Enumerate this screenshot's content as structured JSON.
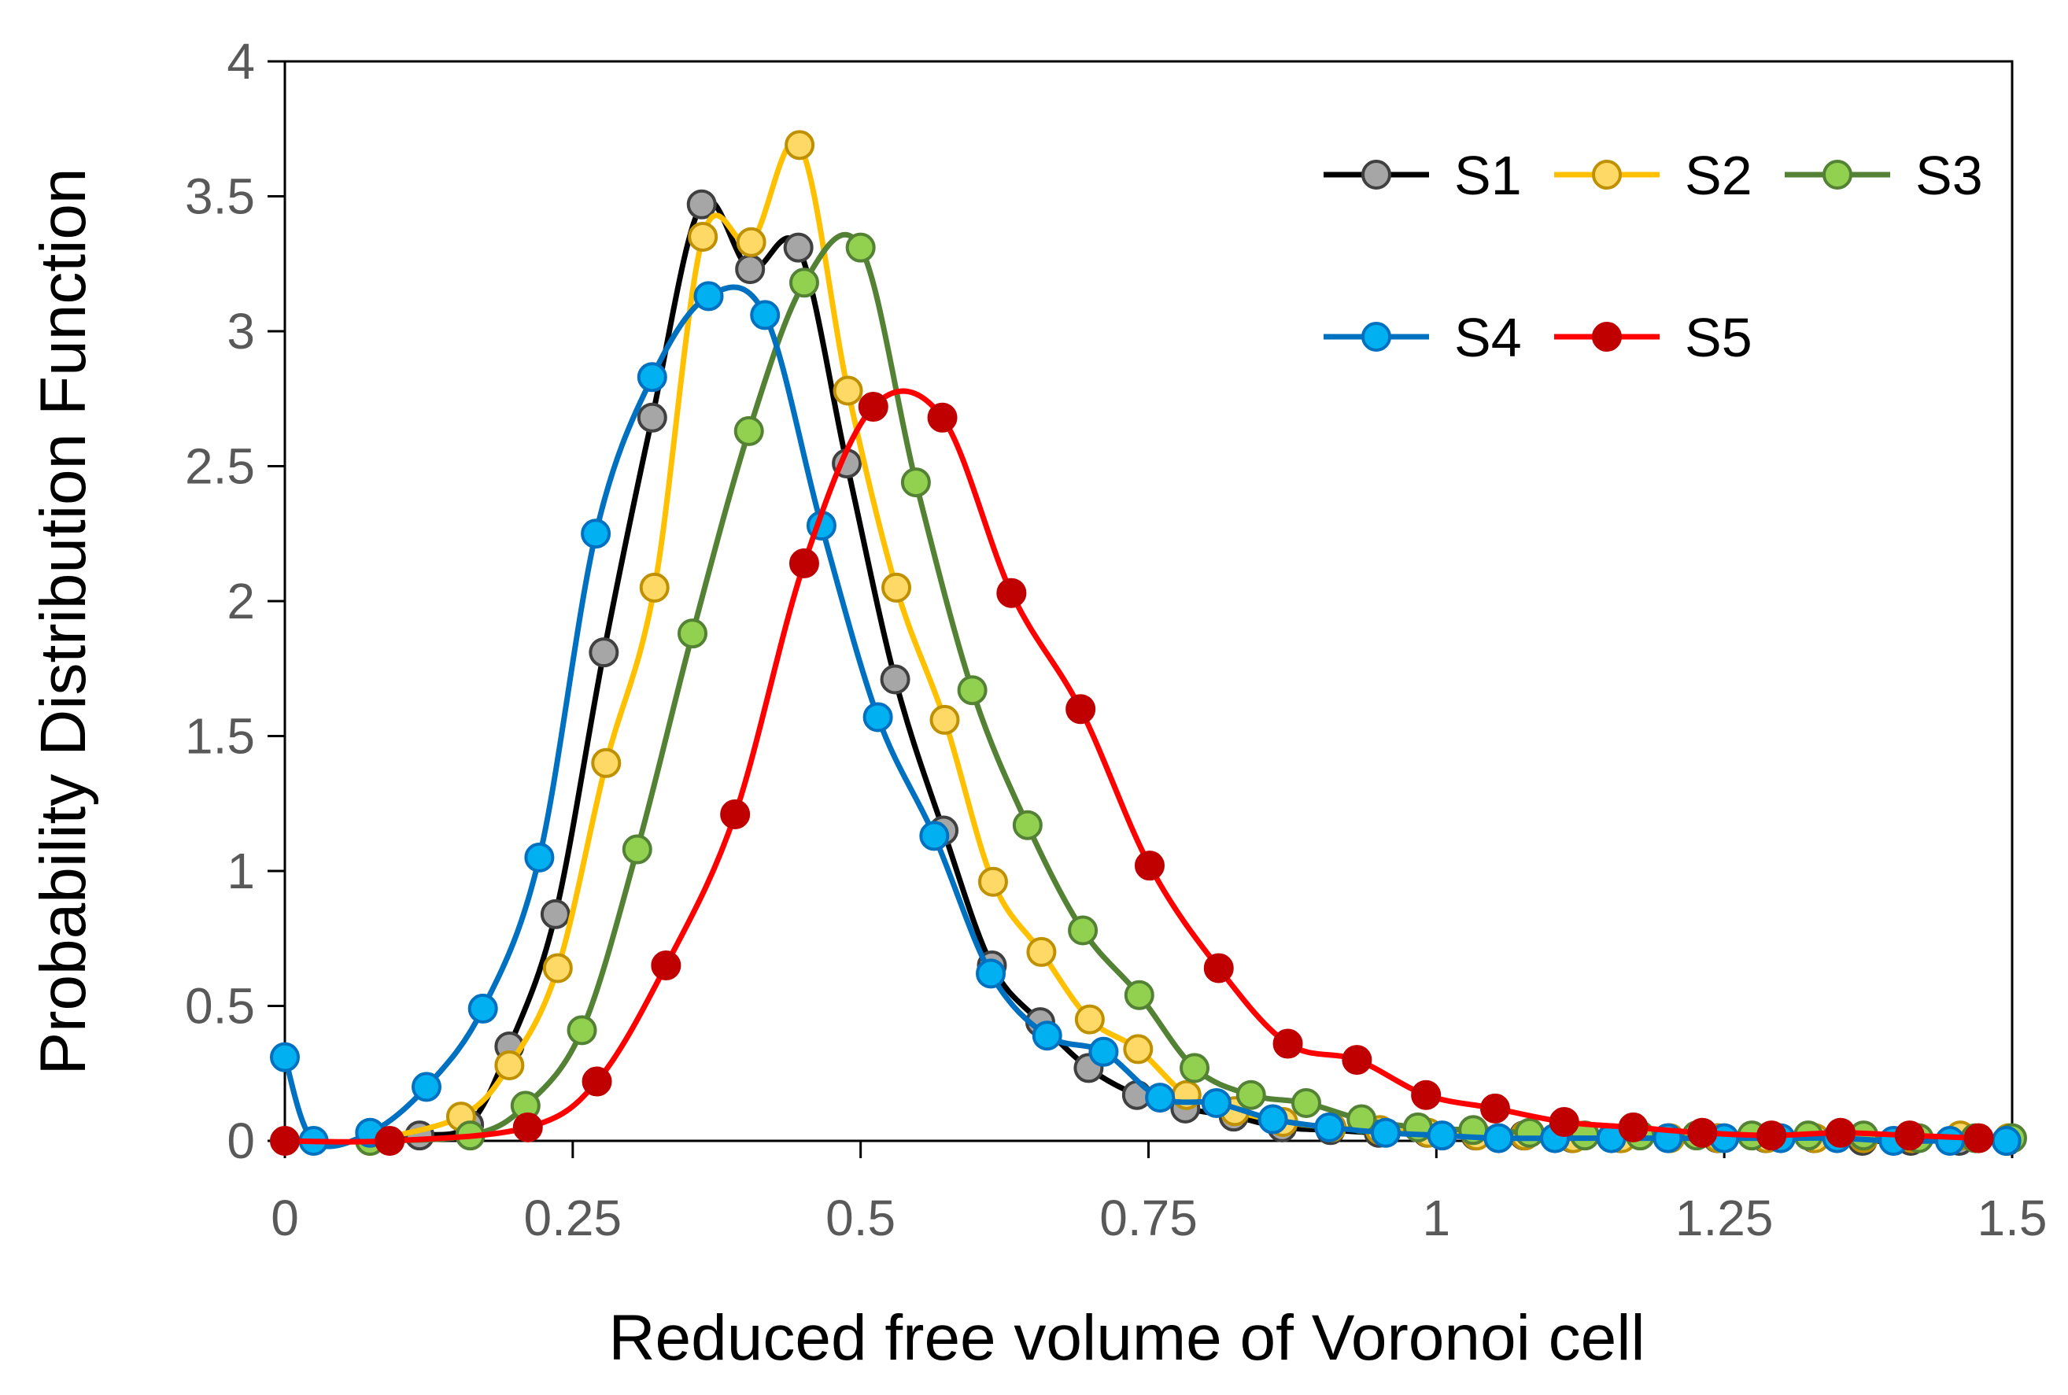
{
  "chart_data": {
    "type": "line",
    "title": "",
    "xlabel": "Reduced free volume of Voronoi cell",
    "ylabel": "Probability Distribution Function",
    "xlim": [
      0,
      1.5
    ],
    "ylim": [
      0,
      4
    ],
    "xticks": [
      0,
      0.25,
      0.5,
      0.75,
      1,
      1.25,
      1.5
    ],
    "yticks": [
      0,
      0.5,
      1,
      1.5,
      2,
      2.5,
      3,
      3.5,
      4
    ],
    "xtick_labels": [
      "0",
      "0.25",
      "0.5",
      "0.75",
      "1",
      "1.25",
      "1.5"
    ],
    "ytick_labels": [
      "0",
      "0.5",
      "1",
      "1.5",
      "2",
      "2.5",
      "3",
      "3.5",
      "4"
    ],
    "grid": false,
    "legend_position": "top-right",
    "series": [
      {
        "name": "S1",
        "line_color": "#000000",
        "marker_fill": "#a6a6a6",
        "marker_edge": "#404040",
        "x": [
          0.074,
          0.117,
          0.16,
          0.195,
          0.235,
          0.277,
          0.319,
          0.362,
          0.404,
          0.446,
          0.488,
          0.53,
          0.572,
          0.614,
          0.656,
          0.698,
          0.74,
          0.782,
          0.824,
          0.866,
          0.908,
          0.95,
          0.992,
          1.034,
          1.076,
          1.118,
          1.16,
          1.202,
          1.244,
          1.286,
          1.328,
          1.37,
          1.412,
          1.454,
          1.496
        ],
        "y": [
          0.0,
          0.02,
          0.06,
          0.35,
          0.84,
          1.81,
          2.68,
          3.47,
          3.23,
          3.31,
          2.51,
          1.71,
          1.15,
          0.65,
          0.44,
          0.27,
          0.17,
          0.12,
          0.09,
          0.05,
          0.04,
          0.03,
          0.03,
          0.02,
          0.02,
          0.01,
          0.01,
          0.01,
          0.01,
          0.01,
          0.01,
          0.0,
          0.0,
          0.0,
          0.0
        ]
      },
      {
        "name": "S2",
        "line_color": "#ffc000",
        "marker_fill": "#ffd966",
        "marker_edge": "#bf9000",
        "x": [
          0.074,
          0.153,
          0.195,
          0.237,
          0.279,
          0.321,
          0.363,
          0.405,
          0.447,
          0.489,
          0.531,
          0.573,
          0.615,
          0.657,
          0.699,
          0.741,
          0.783,
          0.825,
          0.867,
          0.909,
          0.951,
          0.993,
          1.035,
          1.077,
          1.119,
          1.161,
          1.203,
          1.245,
          1.287,
          1.329,
          1.371,
          1.413,
          1.455,
          1.497
        ],
        "y": [
          0.0,
          0.09,
          0.28,
          0.64,
          1.4,
          2.05,
          3.35,
          3.33,
          3.69,
          2.78,
          2.05,
          1.56,
          0.96,
          0.7,
          0.45,
          0.34,
          0.17,
          0.11,
          0.07,
          0.05,
          0.04,
          0.03,
          0.02,
          0.02,
          0.01,
          0.01,
          0.01,
          0.01,
          0.01,
          0.01,
          0.01,
          0.01,
          0.02,
          0.01
        ]
      },
      {
        "name": "S3",
        "line_color": "#548235",
        "marker_fill": "#92d050",
        "marker_edge": "#548235",
        "x": [
          0.074,
          0.161,
          0.209,
          0.258,
          0.306,
          0.354,
          0.403,
          0.451,
          0.5,
          0.548,
          0.597,
          0.645,
          0.693,
          0.742,
          0.79,
          0.839,
          0.887,
          0.935,
          0.984,
          1.032,
          1.081,
          1.129,
          1.177,
          1.226,
          1.274,
          1.323,
          1.371,
          1.419,
          1.468,
          1.5
        ],
        "y": [
          0.0,
          0.02,
          0.13,
          0.41,
          1.08,
          1.88,
          2.63,
          3.18,
          3.31,
          2.44,
          1.67,
          1.17,
          0.78,
          0.54,
          0.27,
          0.17,
          0.14,
          0.08,
          0.05,
          0.04,
          0.03,
          0.02,
          0.02,
          0.02,
          0.02,
          0.02,
          0.02,
          0.01,
          0.01,
          0.01
        ]
      },
      {
        "name": "S4",
        "line_color": "#0070c0",
        "marker_fill": "#00b0f0",
        "marker_edge": "#0070c0",
        "x": [
          0.0,
          0.025,
          0.074,
          0.123,
          0.172,
          0.221,
          0.27,
          0.319,
          0.368,
          0.417,
          0.466,
          0.515,
          0.564,
          0.613,
          0.662,
          0.711,
          0.76,
          0.809,
          0.858,
          0.907,
          0.956,
          1.005,
          1.054,
          1.103,
          1.152,
          1.201,
          1.25,
          1.299,
          1.348,
          1.397,
          1.446,
          1.495
        ],
        "y": [
          0.31,
          0.0,
          0.03,
          0.2,
          0.49,
          1.05,
          2.25,
          2.83,
          3.13,
          3.06,
          2.28,
          1.57,
          1.13,
          0.62,
          0.39,
          0.33,
          0.16,
          0.14,
          0.08,
          0.05,
          0.03,
          0.02,
          0.01,
          0.01,
          0.01,
          0.01,
          0.01,
          0.01,
          0.01,
          0.0,
          0.0,
          0.0
        ]
      },
      {
        "name": "S5",
        "line_color": "#ff0000",
        "marker_fill": "#c00000",
        "marker_edge": "#c00000",
        "x": [
          0.0,
          0.091,
          0.211,
          0.271,
          0.331,
          0.391,
          0.451,
          0.511,
          0.571,
          0.631,
          0.691,
          0.751,
          0.811,
          0.871,
          0.931,
          0.991,
          1.051,
          1.111,
          1.171,
          1.231,
          1.291,
          1.351,
          1.411,
          1.471
        ],
        "y": [
          0.0,
          0.0,
          0.05,
          0.22,
          0.65,
          1.21,
          2.14,
          2.72,
          2.68,
          2.03,
          1.6,
          1.02,
          0.64,
          0.36,
          0.3,
          0.17,
          0.12,
          0.07,
          0.05,
          0.03,
          0.02,
          0.03,
          0.02,
          0.01
        ]
      }
    ]
  }
}
